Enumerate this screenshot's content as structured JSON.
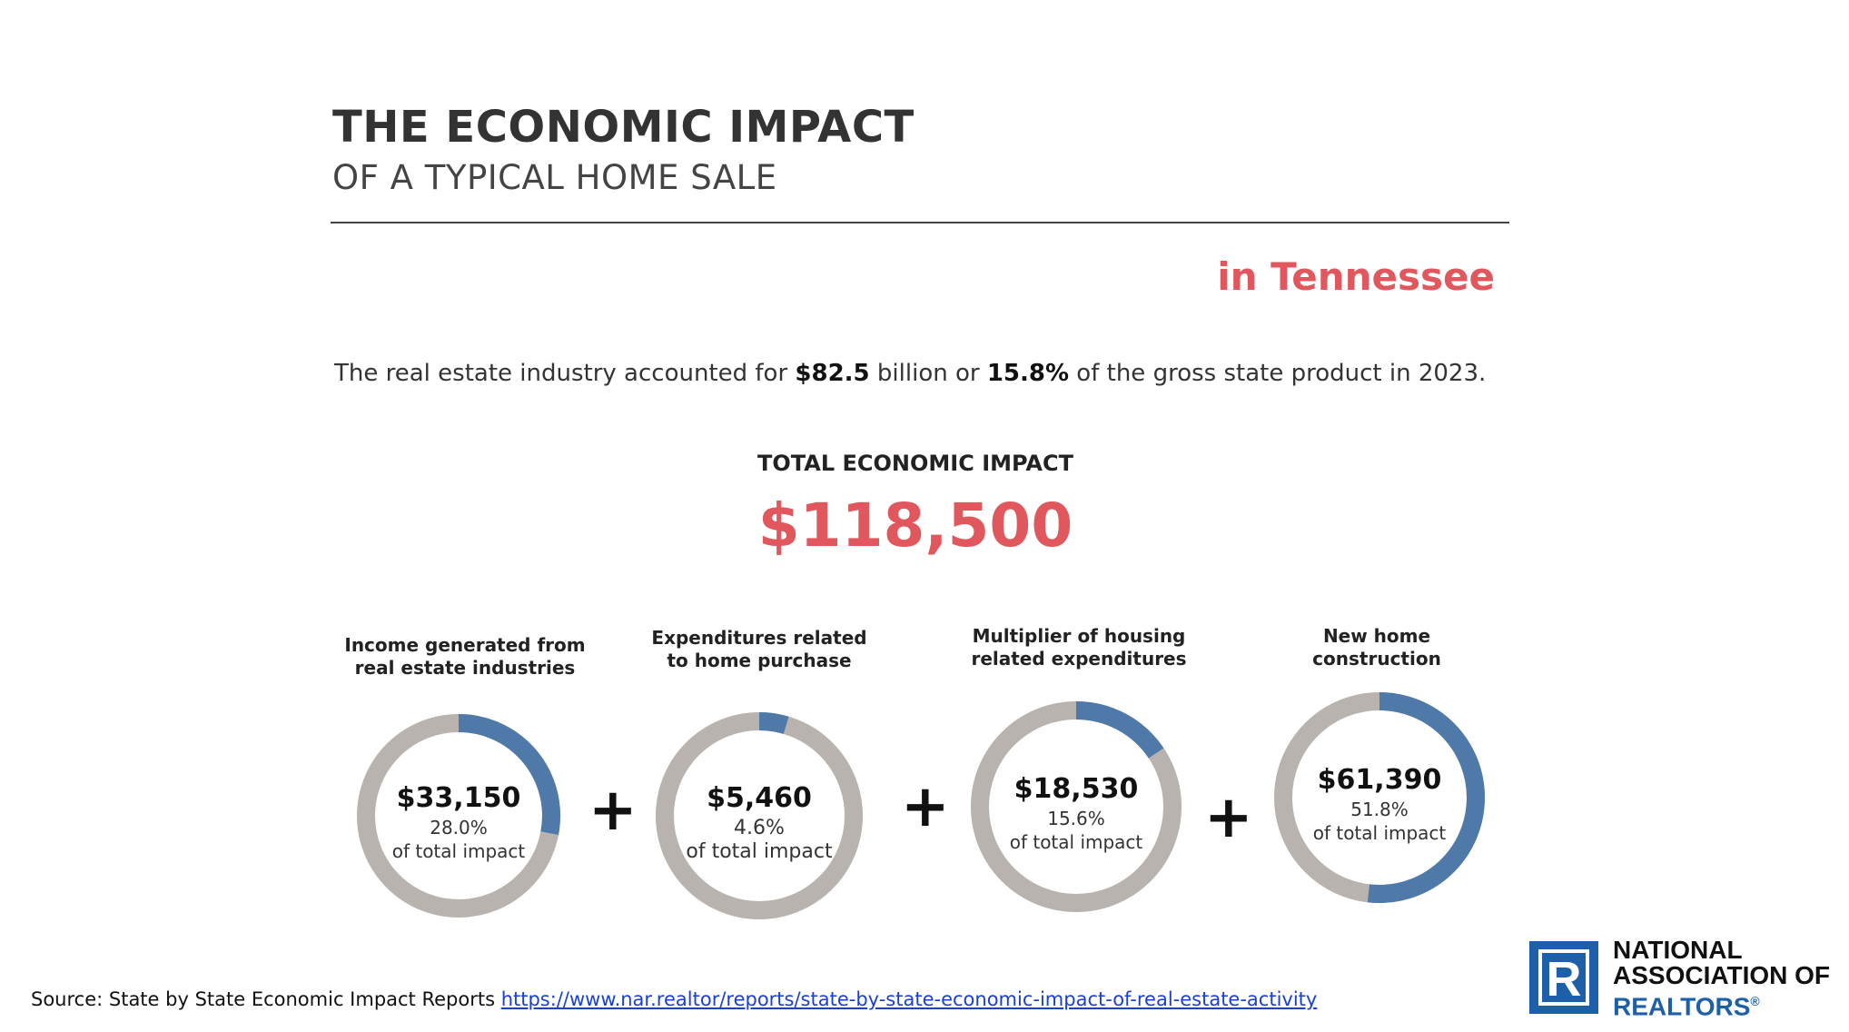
{
  "header": {
    "title": "THE ECONOMIC IMPACT",
    "subtitle": "OF A TYPICAL HOME SALE",
    "location": "in Tennessee"
  },
  "industry": {
    "prefix": "The real estate industry accounted for ",
    "amount": "$82.5",
    "middle": " billion or ",
    "percent": "15.8%",
    "suffix": " of the gross state product in 2023."
  },
  "total": {
    "label": "TOTAL ECONOMIC IMPACT",
    "value": "$118,500"
  },
  "colors": {
    "accent": "#e0585e",
    "filled": "#4f79a8",
    "remainder": "#b9b3b0",
    "logo": "#1d5fa8"
  },
  "chart_data": {
    "type": "pie",
    "style": "donut",
    "categories": [
      "Income generated from real estate industries",
      "Expenditures related to home purchase",
      "Multiplier of housing related expenditures",
      "New home construction"
    ],
    "values": [
      33150,
      5460,
      18530,
      61390
    ],
    "percents": [
      28.0,
      4.6,
      15.6,
      51.8
    ],
    "items": [
      {
        "caption": [
          "Income generated from",
          "real estate industries"
        ],
        "amount": "$33,150",
        "percent_label": "28.0%",
        "of_label": "of total impact",
        "percent": 28.0
      },
      {
        "caption": [
          "Expenditures related",
          "to home purchase"
        ],
        "amount": "$5,460",
        "percent_label": "4.6%",
        "of_label": "of total impact",
        "percent": 4.6
      },
      {
        "caption": [
          "Multiplier of housing",
          "related expenditures"
        ],
        "amount": "$18,530",
        "percent_label": "15.6%",
        "of_label": "of total impact",
        "percent": 15.6
      },
      {
        "caption": [
          "New home",
          "construction"
        ],
        "amount": "$61,390",
        "percent_label": "51.8%",
        "of_label": "of total impact",
        "percent": 51.8
      }
    ],
    "operator": "+"
  },
  "source": {
    "label": "Source: State by State Economic Impact Reports ",
    "link": "https://www.nar.realtor/reports/state-by-state-economic-impact-of-real-estate-activity"
  },
  "logo": {
    "line1": "NATIONAL",
    "line2": "ASSOCIATION OF",
    "line3": "REALTORS",
    "mark": "®",
    "letter": "R"
  }
}
